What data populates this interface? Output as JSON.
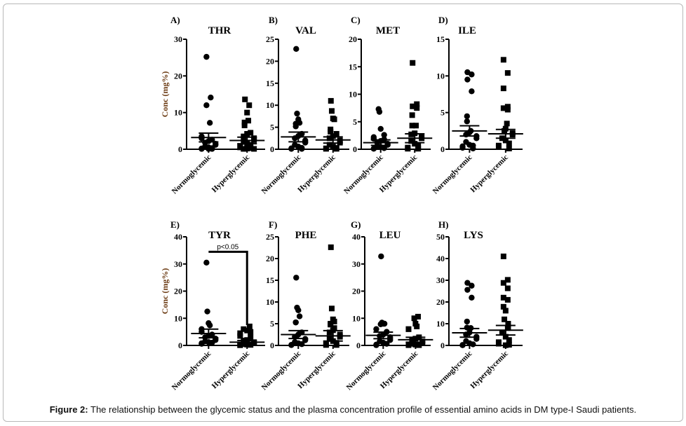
{
  "caption": {
    "label": "Figure 2:",
    "text": " The relationship between the glycemic status and the plasma concentration profile of essential amino acids in DM type-I Saudi patients."
  },
  "chart_data": [
    {
      "type": "scatter",
      "panel": "A)",
      "title": "THR",
      "ylabel": "Conc (mg%)",
      "xlabel": "",
      "ylim": [
        0,
        30
      ],
      "yticks": [
        0,
        10,
        20,
        30
      ],
      "categories": [
        "Normoglycemic",
        "Hyperglycemic"
      ],
      "series": [
        {
          "name": "Normoglycemic",
          "marker": "circle",
          "mean": 3.2,
          "sem": 1.2,
          "values": [
            25.2,
            14.1,
            12.0,
            7.2,
            3.5,
            3.0,
            2.6,
            2.2,
            1.8,
            1.5,
            1.2,
            0.8,
            0.5,
            0.3,
            0.2,
            0.1,
            0.1,
            0.1
          ]
        },
        {
          "name": "Hyperglycemic",
          "marker": "square",
          "mean": 2.4,
          "sem": 0.9,
          "values": [
            13.6,
            12.0,
            10.0,
            7.8,
            7.3,
            6.5,
            4.5,
            4.2,
            3.5,
            3.0,
            2.5,
            2.0,
            1.5,
            1.2,
            0.8,
            0.5,
            0.3,
            0.2,
            0.1,
            0.1
          ]
        }
      ]
    },
    {
      "type": "scatter",
      "panel": "B)",
      "title": "VAL",
      "ylabel": "",
      "xlabel": "",
      "ylim": [
        0,
        25
      ],
      "yticks": [
        0,
        5,
        10,
        15,
        20,
        25
      ],
      "categories": [
        "Normoglycemic",
        "Hyperglycemic"
      ],
      "series": [
        {
          "name": "Normoglycemic",
          "marker": "circle",
          "mean": 2.8,
          "sem": 1.1,
          "values": [
            22.8,
            8.1,
            6.8,
            6.0,
            5.8,
            5.2,
            3.5,
            3.0,
            2.5,
            2.0,
            1.5,
            1.0,
            0.6,
            0.3,
            0.2,
            0.1,
            0.1
          ]
        },
        {
          "name": "Hyperglycemic",
          "marker": "square",
          "mean": 2.1,
          "sem": 0.7,
          "values": [
            11.0,
            8.7,
            7.0,
            6.8,
            4.5,
            4.0,
            3.5,
            3.0,
            2.5,
            2.0,
            1.5,
            1.0,
            0.6,
            0.3,
            0.2,
            0.1,
            0.1
          ]
        }
      ]
    },
    {
      "type": "scatter",
      "panel": "C)",
      "title": "MET",
      "ylabel": "",
      "xlabel": "",
      "ylim": [
        0,
        20
      ],
      "yticks": [
        0,
        5,
        10,
        15,
        20
      ],
      "categories": [
        "Normoglycemic",
        "Hyperglycemic"
      ],
      "series": [
        {
          "name": "Normoglycemic",
          "marker": "circle",
          "mean": 1.2,
          "sem": 0.5,
          "values": [
            7.3,
            6.8,
            3.7,
            2.6,
            2.2,
            1.9,
            1.8,
            1.5,
            1.2,
            1.0,
            0.8,
            0.6,
            0.4,
            0.2,
            0.1,
            0.1
          ]
        },
        {
          "name": "Hyperglycemic",
          "marker": "square",
          "mean": 2.0,
          "sem": 0.8,
          "values": [
            15.7,
            8.2,
            7.8,
            7.5,
            6.2,
            4.3,
            4.3,
            2.9,
            2.7,
            2.4,
            2.0,
            1.5,
            1.0,
            0.6,
            0.3,
            0.1,
            0.1
          ]
        }
      ]
    },
    {
      "type": "scatter",
      "panel": "D)",
      "title": "ILE",
      "ylabel": "",
      "xlabel": "",
      "ylim": [
        0,
        15
      ],
      "yticks": [
        0,
        5,
        10,
        15
      ],
      "categories": [
        "Normoglycemic",
        "Hyperglycemic"
      ],
      "series": [
        {
          "name": "Normoglycemic",
          "marker": "circle",
          "mean": 2.5,
          "sem": 0.7,
          "values": [
            10.5,
            10.2,
            9.5,
            7.9,
            4.5,
            3.8,
            2.5,
            2.3,
            2.0,
            1.8,
            1.5,
            1.0,
            0.6,
            0.5,
            0.4,
            0.2,
            0.1
          ]
        },
        {
          "name": "Hyperglycemic",
          "marker": "square",
          "mean": 2.1,
          "sem": 0.6,
          "values": [
            12.2,
            10.4,
            8.3,
            5.8,
            5.6,
            5.4,
            3.5,
            2.8,
            2.5,
            2.2,
            2.0,
            1.5,
            1.2,
            0.8,
            0.5,
            0.3,
            0.1
          ]
        }
      ]
    },
    {
      "type": "scatter",
      "panel": "E)",
      "title": "TYR",
      "ylabel": "Conc (mg%)",
      "xlabel": "",
      "ylim": [
        0,
        40
      ],
      "yticks": [
        0,
        10,
        20,
        30,
        40
      ],
      "categories": [
        "Normoglycemic",
        "Hyperglycemic"
      ],
      "annotation": {
        "text": "p<0.05",
        "y": 34.5
      },
      "series": [
        {
          "name": "Normoglycemic",
          "marker": "circle",
          "mean": 4.4,
          "sem": 1.6,
          "values": [
            30.5,
            12.5,
            8.2,
            7.4,
            6.0,
            5.0,
            4.0,
            3.5,
            3.0,
            2.5,
            2.0,
            1.5,
            1.2,
            1.0,
            0.8,
            0.6
          ]
        },
        {
          "name": "Hyperglycemic",
          "marker": "square",
          "mean": 1.2,
          "sem": 0.6,
          "values": [
            7.0,
            6.0,
            5.5,
            5.0,
            4.5,
            3.5,
            3.0,
            2.0,
            1.8,
            1.2,
            0.8,
            0.5,
            0.3,
            0.2,
            0.1,
            0.1
          ]
        }
      ]
    },
    {
      "type": "scatter",
      "panel": "F)",
      "title": "PHE",
      "ylabel": "",
      "xlabel": "",
      "ylim": [
        0,
        25
      ],
      "yticks": [
        0,
        5,
        10,
        15,
        20,
        25
      ],
      "categories": [
        "Normoglycemic",
        "Hyperglycemic"
      ],
      "series": [
        {
          "name": "Normoglycemic",
          "marker": "circle",
          "mean": 2.5,
          "sem": 0.9,
          "values": [
            15.6,
            8.7,
            8.1,
            6.7,
            5.3,
            5.3,
            3.0,
            2.5,
            2.0,
            1.5,
            1.2,
            0.8,
            0.5,
            0.3,
            0.1,
            0.1
          ]
        },
        {
          "name": "Hyperglycemic",
          "marker": "square",
          "mean": 2.2,
          "sem": 1.2,
          "values": [
            22.6,
            8.5,
            6.0,
            5.5,
            5.0,
            4.8,
            4.0,
            3.5,
            3.0,
            2.5,
            2.0,
            1.5,
            1.0,
            0.6,
            0.3,
            0.1,
            0.1
          ]
        }
      ]
    },
    {
      "type": "scatter",
      "panel": "G)",
      "title": "LEU",
      "ylabel": "",
      "xlabel": "",
      "ylim": [
        0,
        40
      ],
      "yticks": [
        0,
        10,
        20,
        30,
        40
      ],
      "categories": [
        "Normoglycemic",
        "Hyperglycemic"
      ],
      "series": [
        {
          "name": "Normoglycemic",
          "marker": "circle",
          "mean": 3.7,
          "sem": 1.2,
          "values": [
            32.8,
            8.4,
            8.0,
            8.0,
            7.8,
            6.0,
            5.0,
            4.0,
            3.5,
            3.0,
            2.0,
            1.5,
            1.0,
            0.6,
            0.3,
            0.1
          ]
        },
        {
          "name": "Hyperglycemic",
          "marker": "square",
          "mean": 2.1,
          "sem": 0.9,
          "values": [
            10.6,
            10.0,
            8.0,
            7.0,
            6.0,
            6.0,
            3.0,
            2.5,
            2.0,
            1.5,
            1.0,
            0.6,
            0.3,
            0.1,
            0.1
          ]
        }
      ]
    },
    {
      "type": "scatter",
      "panel": "H)",
      "title": "LYS",
      "ylabel": "",
      "xlabel": "",
      "ylim": [
        0,
        50
      ],
      "yticks": [
        0,
        10,
        20,
        30,
        40,
        50
      ],
      "categories": [
        "Normoglycemic",
        "Hyperglycemic"
      ],
      "series": [
        {
          "name": "Normoglycemic",
          "marker": "circle",
          "mean": 5.8,
          "sem": 2.0,
          "values": [
            28.8,
            27.5,
            25.6,
            22.0,
            11.0,
            8.2,
            8.0,
            6.0,
            5.0,
            4.0,
            3.0,
            2.0,
            1.0,
            0.5,
            0.2,
            0.1
          ]
        },
        {
          "name": "Hyperglycemic",
          "marker": "square",
          "mean": 7.0,
          "sem": 2.2,
          "values": [
            41.0,
            30.2,
            28.8,
            26.3,
            22.0,
            21.0,
            17.8,
            16.0,
            12.0,
            10.0,
            8.0,
            6.0,
            4.0,
            2.5,
            1.5,
            0.8,
            0.3,
            0.1
          ]
        }
      ]
    }
  ]
}
